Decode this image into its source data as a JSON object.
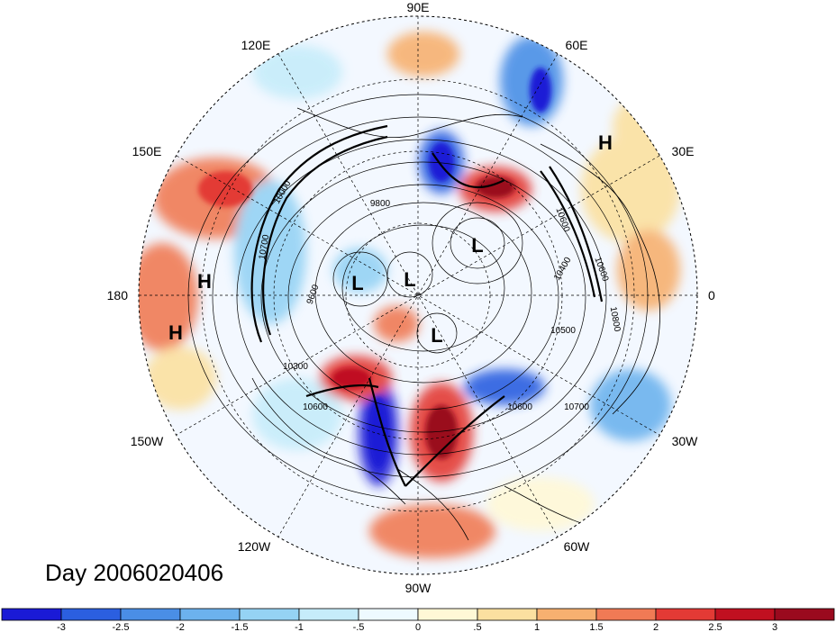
{
  "title": "Day 2006020406",
  "longitude_labels": [
    "90E",
    "60E",
    "30E",
    "0",
    "30W",
    "60W",
    "90W",
    "120W",
    "150W",
    "180",
    "150E",
    "120E"
  ],
  "pressure_centers": [
    {
      "label": "H"
    },
    {
      "label": "H"
    },
    {
      "label": "H"
    },
    {
      "label": "L"
    },
    {
      "label": "L"
    },
    {
      "label": "L"
    },
    {
      "label": "L"
    }
  ],
  "contour_labels": [
    "9800",
    "9600",
    "10300",
    "10600",
    "10700",
    "10500",
    "10800",
    "10600",
    "10400",
    "10600",
    "10600",
    "10700",
    "10000"
  ],
  "colorbar": {
    "ticks": [
      "-3",
      "-2.5",
      "-2",
      "-1.5",
      "-1",
      "-.5",
      "0",
      ".5",
      "1",
      "1.5",
      "2",
      "2.5",
      "3"
    ],
    "colors": [
      "#1a1ad6",
      "#2b5fe0",
      "#4a8ee6",
      "#6cb2ee",
      "#95d3f4",
      "#c6ecfa",
      "#eefaff",
      "#fff8d6",
      "#fbe0a0",
      "#f7b070",
      "#f07a55",
      "#e33a35",
      "#c01020",
      "#9a0a1e"
    ]
  }
}
